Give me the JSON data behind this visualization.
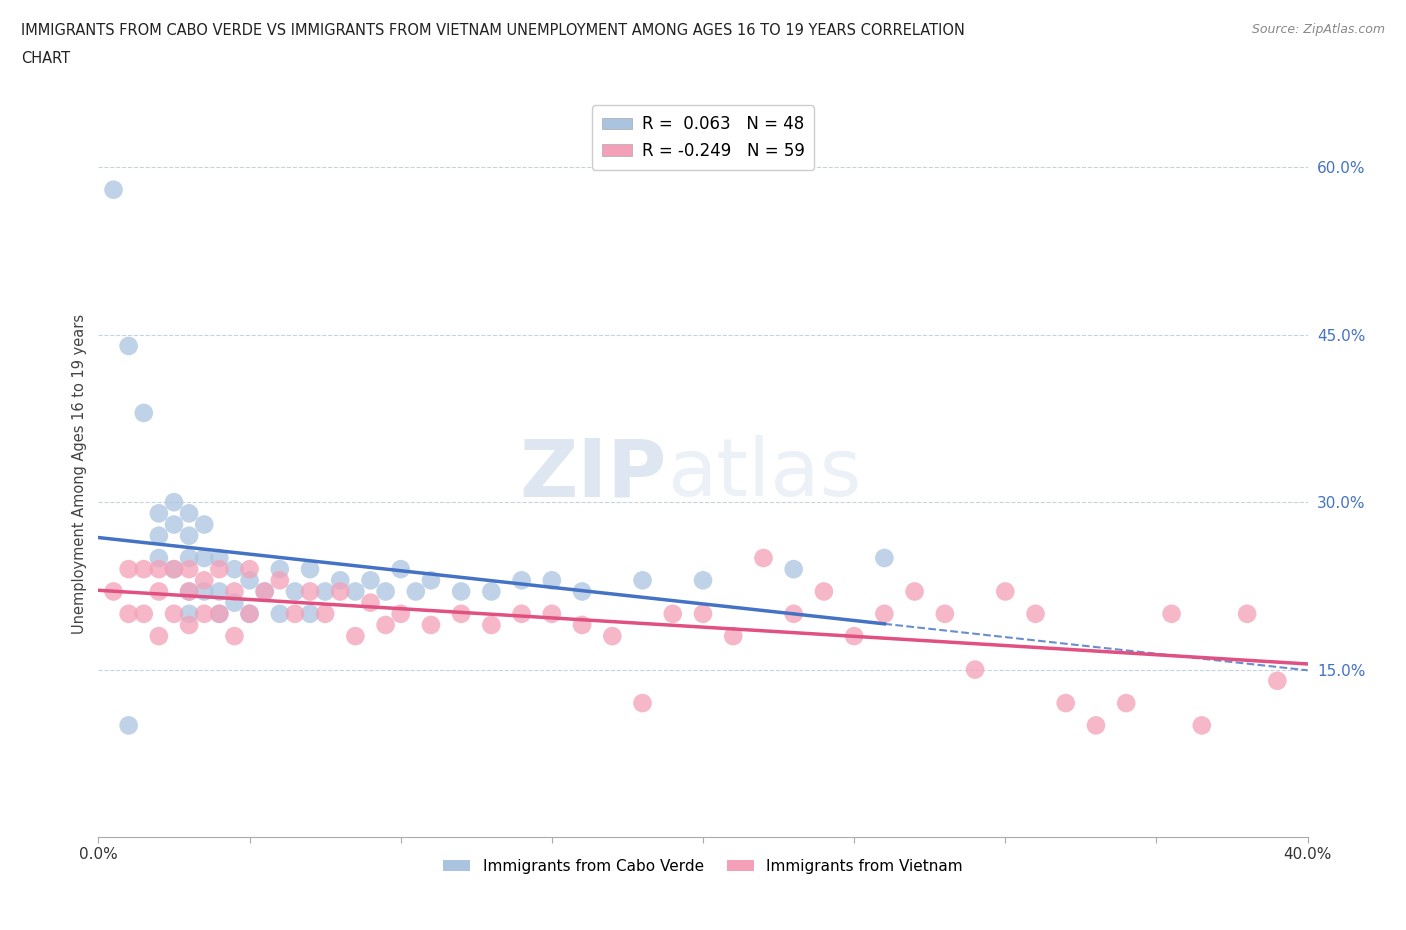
{
  "title_line1": "IMMIGRANTS FROM CABO VERDE VS IMMIGRANTS FROM VIETNAM UNEMPLOYMENT AMONG AGES 16 TO 19 YEARS CORRELATION",
  "title_line2": "CHART",
  "source": "Source: ZipAtlas.com",
  "ylabel": "Unemployment Among Ages 16 to 19 years",
  "xlim": [
    0.0,
    0.4
  ],
  "ylim": [
    0.0,
    0.65
  ],
  "cabo_verde_color": "#aac4e0",
  "vietnam_color": "#f4a0b8",
  "cabo_verde_line_color": "#4472c4",
  "vietnam_line_color": "#e05080",
  "cabo_verde_R": 0.063,
  "cabo_verde_N": 48,
  "vietnam_R": -0.249,
  "vietnam_N": 59,
  "watermark_zip": "ZIP",
  "watermark_atlas": "atlas",
  "cabo_verde_x": [
    0.005,
    0.01,
    0.01,
    0.015,
    0.02,
    0.02,
    0.02,
    0.025,
    0.025,
    0.025,
    0.03,
    0.03,
    0.03,
    0.03,
    0.03,
    0.035,
    0.035,
    0.035,
    0.04,
    0.04,
    0.04,
    0.045,
    0.045,
    0.05,
    0.05,
    0.055,
    0.06,
    0.06,
    0.065,
    0.07,
    0.07,
    0.075,
    0.08,
    0.085,
    0.09,
    0.095,
    0.1,
    0.105,
    0.11,
    0.12,
    0.13,
    0.14,
    0.15,
    0.16,
    0.18,
    0.2,
    0.23,
    0.26
  ],
  "cabo_verde_y": [
    0.58,
    0.44,
    0.1,
    0.38,
    0.29,
    0.27,
    0.25,
    0.3,
    0.28,
    0.24,
    0.29,
    0.27,
    0.25,
    0.22,
    0.2,
    0.28,
    0.25,
    0.22,
    0.25,
    0.22,
    0.2,
    0.24,
    0.21,
    0.23,
    0.2,
    0.22,
    0.24,
    0.2,
    0.22,
    0.24,
    0.2,
    0.22,
    0.23,
    0.22,
    0.23,
    0.22,
    0.24,
    0.22,
    0.23,
    0.22,
    0.22,
    0.23,
    0.23,
    0.22,
    0.23,
    0.23,
    0.24,
    0.25
  ],
  "vietnam_x": [
    0.005,
    0.01,
    0.01,
    0.015,
    0.015,
    0.02,
    0.02,
    0.02,
    0.025,
    0.025,
    0.03,
    0.03,
    0.03,
    0.035,
    0.035,
    0.04,
    0.04,
    0.045,
    0.045,
    0.05,
    0.05,
    0.055,
    0.06,
    0.065,
    0.07,
    0.075,
    0.08,
    0.085,
    0.09,
    0.095,
    0.1,
    0.11,
    0.12,
    0.13,
    0.14,
    0.15,
    0.16,
    0.17,
    0.18,
    0.19,
    0.2,
    0.21,
    0.22,
    0.23,
    0.24,
    0.25,
    0.26,
    0.27,
    0.28,
    0.29,
    0.3,
    0.31,
    0.32,
    0.33,
    0.34,
    0.355,
    0.365,
    0.38,
    0.39
  ],
  "vietnam_y": [
    0.22,
    0.24,
    0.2,
    0.24,
    0.2,
    0.24,
    0.22,
    0.18,
    0.24,
    0.2,
    0.24,
    0.22,
    0.19,
    0.23,
    0.2,
    0.24,
    0.2,
    0.22,
    0.18,
    0.24,
    0.2,
    0.22,
    0.23,
    0.2,
    0.22,
    0.2,
    0.22,
    0.18,
    0.21,
    0.19,
    0.2,
    0.19,
    0.2,
    0.19,
    0.2,
    0.2,
    0.19,
    0.18,
    0.12,
    0.2,
    0.2,
    0.18,
    0.25,
    0.2,
    0.22,
    0.18,
    0.2,
    0.22,
    0.2,
    0.15,
    0.22,
    0.2,
    0.12,
    0.1,
    0.12,
    0.2,
    0.1,
    0.2,
    0.14
  ]
}
